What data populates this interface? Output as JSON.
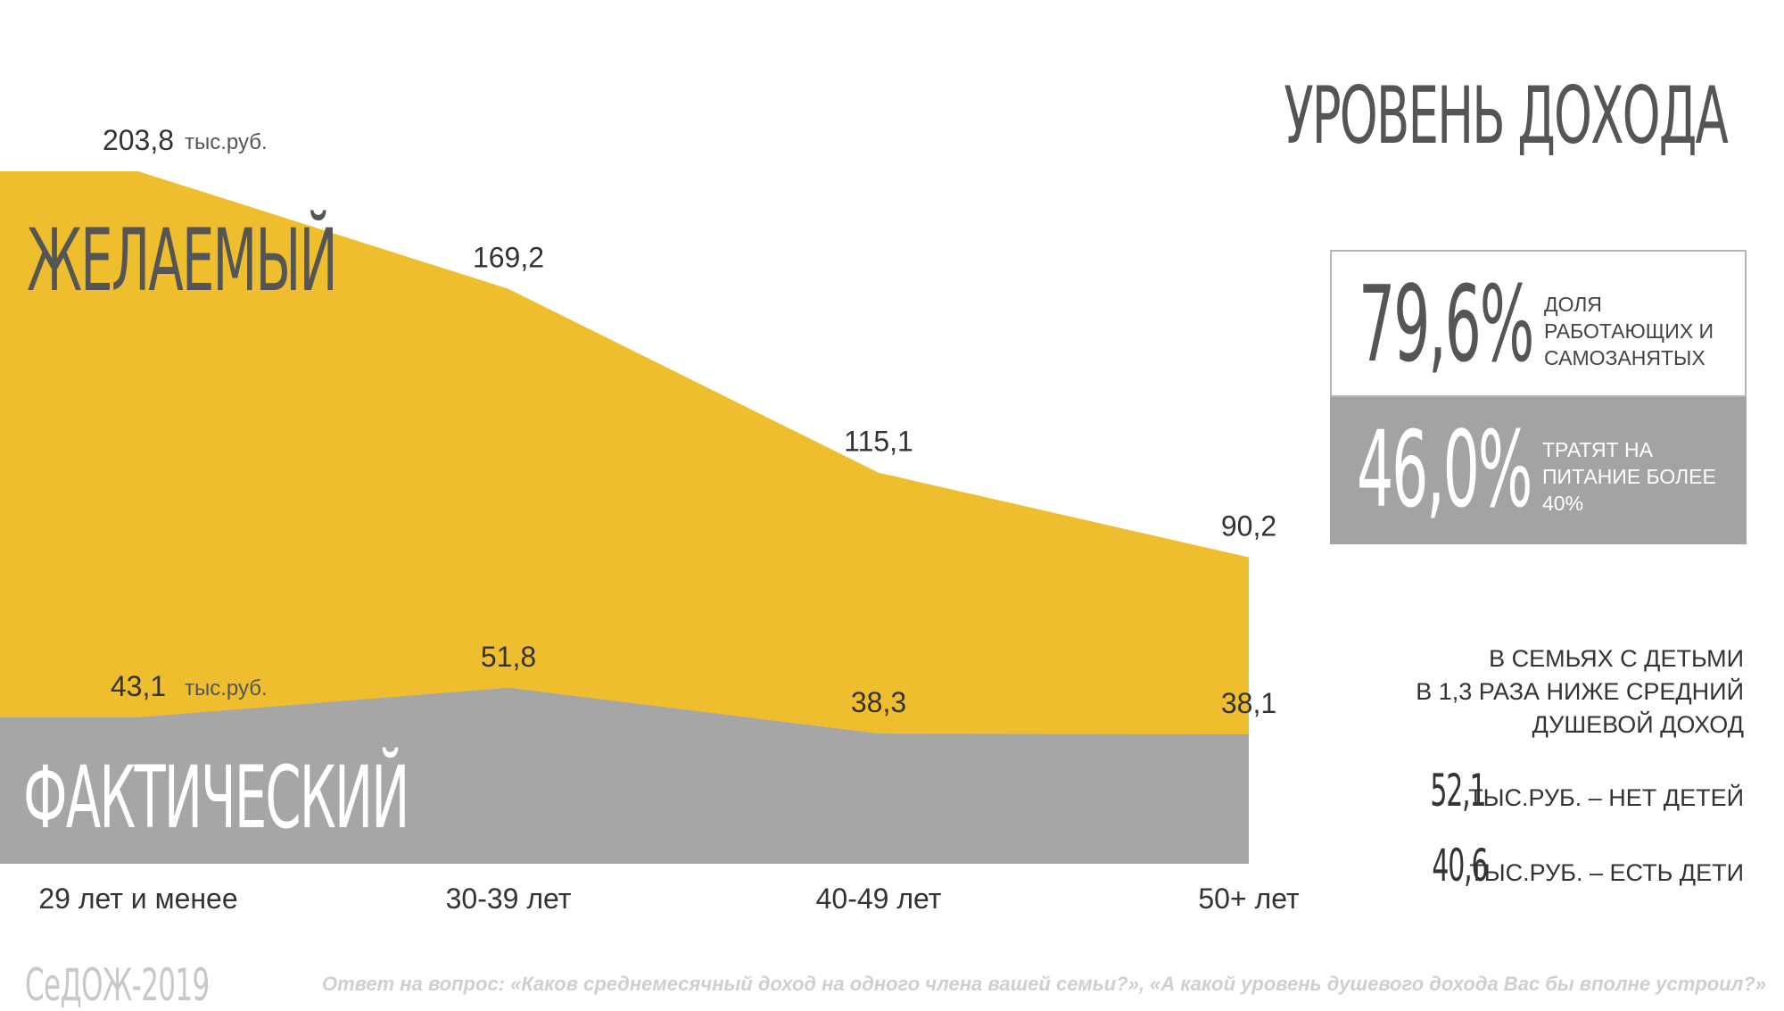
{
  "title": "УРОВЕНЬ ДОХОДА",
  "colors": {
    "desired": "#eebe2f",
    "actual": "#a6a6a6",
    "text": "#333333"
  },
  "chart_data": {
    "type": "area",
    "categories": [
      "29 лет и менее",
      "30-39 лет",
      "40-49 лет",
      "50+ лет"
    ],
    "unit": "тыс.руб.",
    "series": [
      {
        "name": "ЖЕЛАЕМЫЙ",
        "values": [
          203.8,
          169.2,
          115.1,
          90.2
        ],
        "labels": [
          "203,8",
          "169,2",
          "115,1",
          "90,2"
        ]
      },
      {
        "name": "ФАКТИЧЕСКИЙ",
        "values": [
          43.1,
          51.8,
          38.3,
          38.1
        ],
        "labels": [
          "43,1",
          "51,8",
          "38,3",
          "38,1"
        ]
      }
    ],
    "ylim": [
      0,
      203.8
    ]
  },
  "stats": [
    {
      "value": "79,6%",
      "description": "ДОЛЯ РАБОТАЮЩИХ И САМОЗАНЯТЫХ"
    },
    {
      "value": "46,0%",
      "description": "ТРАТЯТ НА ПИТАНИЕ БОЛЕЕ 40%"
    }
  ],
  "family": {
    "heading_line1": "В СЕМЬЯХ С ДЕТЬМИ",
    "heading_line2": "В 1,3 РАЗА НИЖЕ СРЕДНИЙ",
    "heading_line3": "ДУШЕВОЙ ДОХОД",
    "no_children_value": "52,1",
    "no_children_text": "ТЫС.РУБ. – НЕТ  ДЕТЕЙ",
    "with_children_value": "40,6",
    "with_children_text": "ТЫС.РУБ. – ЕСТЬ  ДЕТИ"
  },
  "footer": {
    "brand": "СеДОЖ-2019",
    "note": "Ответ на вопрос: «Каков среднемесячный доход на одного члена вашей семьи?», «А какой уровень душевого дохода Вас бы вполне устроил?»"
  }
}
